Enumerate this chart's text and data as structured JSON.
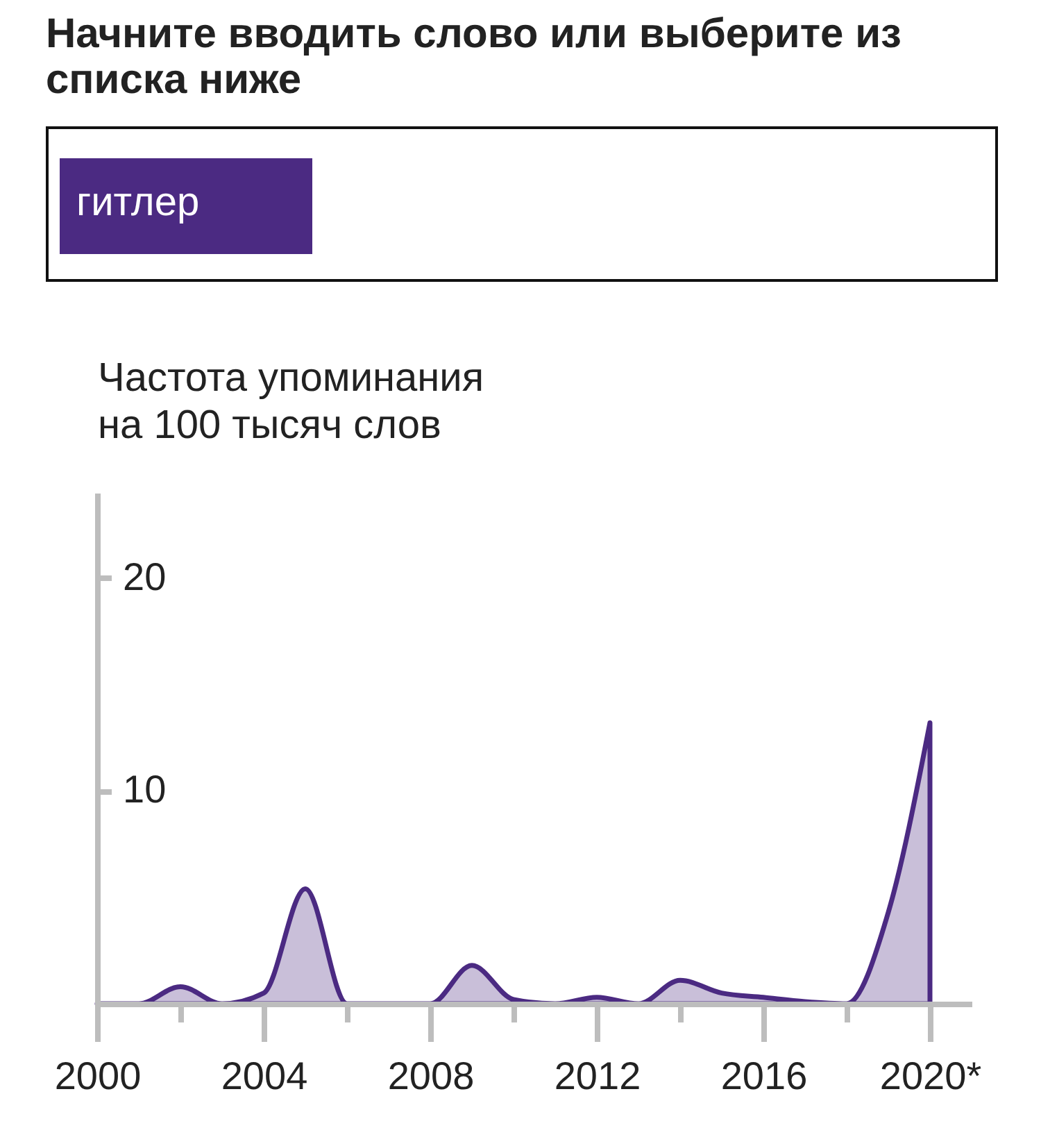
{
  "chart_data": {
    "type": "area",
    "title": "Начните вводить слово или выберите из списка ниже",
    "ylabel": "Частота упоминания на 100 тысяч слов",
    "x": [
      2000,
      2001,
      2002,
      2003,
      2004,
      2005,
      2006,
      2007,
      2008,
      2009,
      2010,
      2011,
      2012,
      2013,
      2014,
      2015,
      2016,
      2017,
      2018,
      2019,
      2020
    ],
    "series": [
      {
        "name": "гитлер",
        "color": "#4b2a82",
        "values": [
          0,
          0,
          0.8,
          0,
          0.5,
          5.4,
          0,
          0,
          0,
          1.8,
          0.2,
          0,
          0.3,
          0,
          1.1,
          0.5,
          0.3,
          0.1,
          0,
          4.3,
          13.2
        ]
      }
    ],
    "xlim": [
      2000,
      2021
    ],
    "xticks": [
      2000,
      {
        "value": 2002,
        "label": null
      },
      2004,
      {
        "value": 2006,
        "label": null
      },
      2008,
      {
        "value": 2010,
        "label": null
      },
      2012,
      {
        "value": 2014,
        "label": null
      },
      2016,
      {
        "value": 2018,
        "label": null
      },
      {
        "value": 2020,
        "label": "2020*"
      }
    ],
    "ylim": [
      0,
      24
    ],
    "yticks": [
      10,
      20
    ],
    "legend": "top left"
  }
}
